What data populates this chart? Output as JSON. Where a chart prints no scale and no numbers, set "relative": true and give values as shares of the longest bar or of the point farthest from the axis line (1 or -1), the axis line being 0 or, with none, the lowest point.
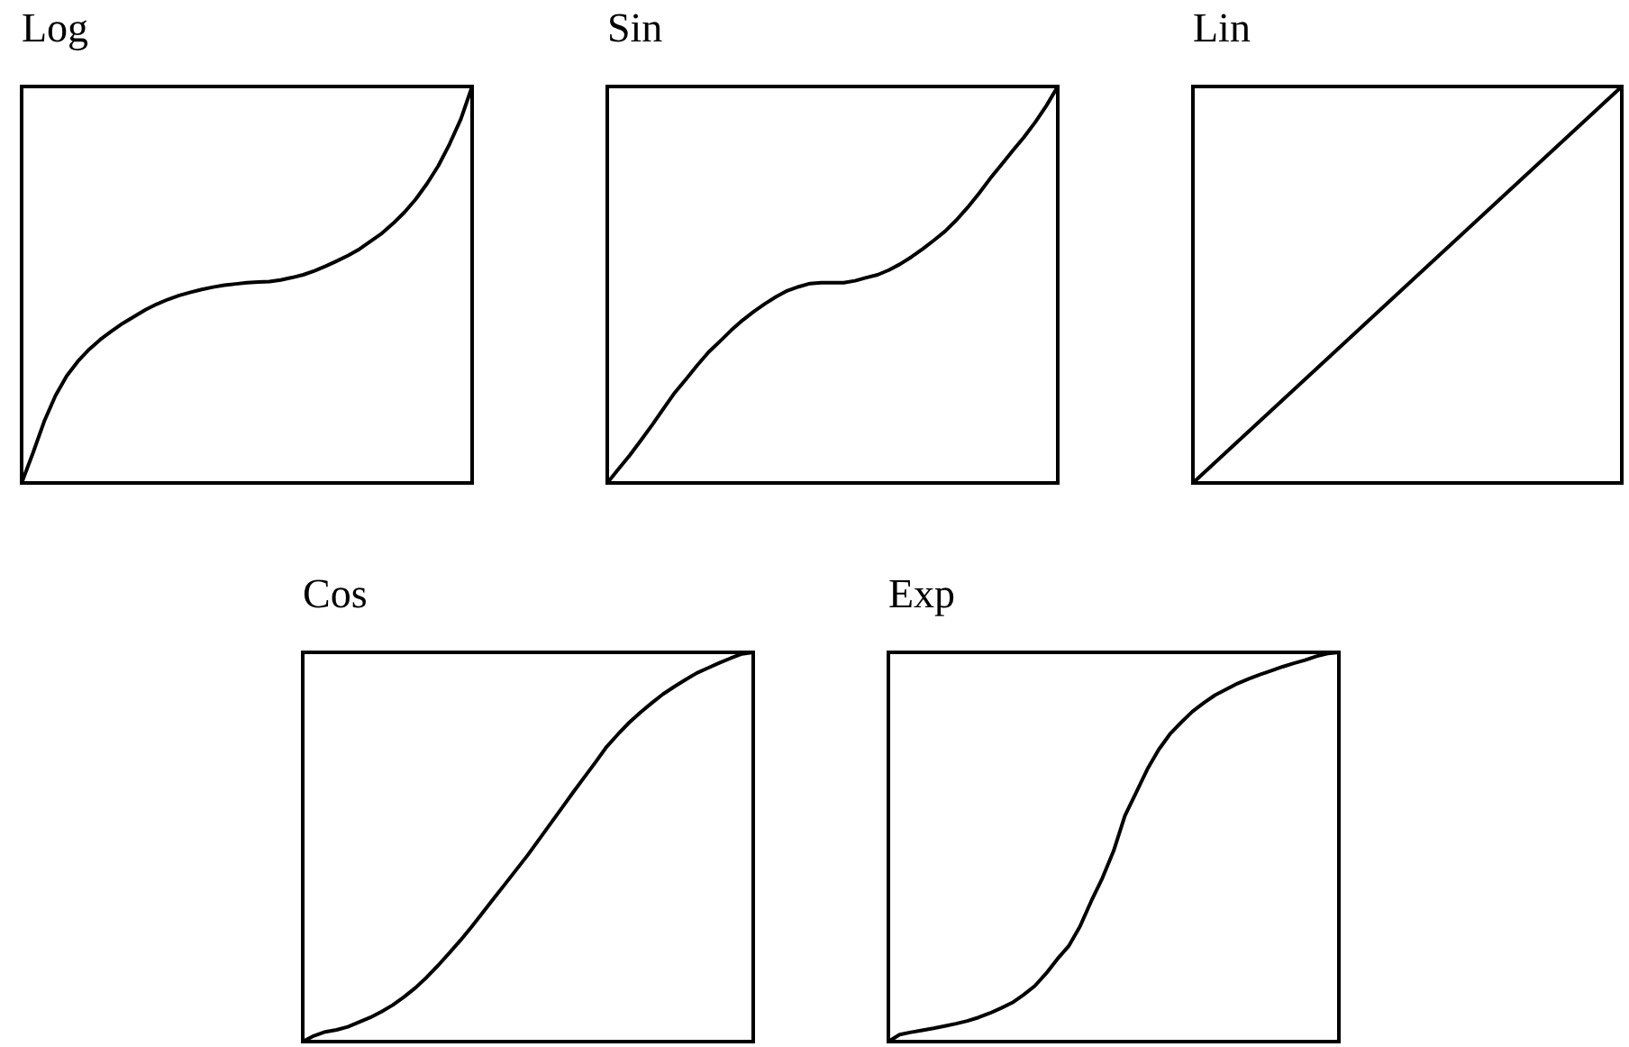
{
  "chart_data": [
    {
      "type": "line",
      "title": "Log",
      "relative": true,
      "tick_labels": false,
      "color": "#000000",
      "categories": [
        null,
        null,
        null,
        null,
        null,
        null,
        null,
        null,
        null,
        null,
        null,
        null,
        null,
        null,
        null,
        null,
        null,
        null,
        null,
        null,
        null,
        null,
        null,
        null,
        null,
        null,
        null,
        null,
        null,
        null,
        null,
        null,
        null,
        null,
        null,
        null,
        null,
        null,
        null,
        null,
        null
      ],
      "values": [
        0,
        0.075,
        0.155,
        0.22,
        0.27,
        0.307,
        0.337,
        0.362,
        0.383,
        0.403,
        0.42,
        0.437,
        0.451,
        0.463,
        0.473,
        0.481,
        0.488,
        0.494,
        0.499,
        0.502,
        0.505,
        0.507,
        0.508,
        0.512,
        0.518,
        0.525,
        0.535,
        0.547,
        0.56,
        0.574,
        0.59,
        0.61,
        0.63,
        0.655,
        0.683,
        0.716,
        0.755,
        0.8,
        0.855,
        0.918,
        1
      ]
    },
    {
      "type": "line",
      "title": "Sin",
      "relative": true,
      "tick_labels": false,
      "color": "#000000",
      "categories": [
        null,
        null,
        null,
        null,
        null,
        null,
        null,
        null,
        null,
        null,
        null,
        null,
        null,
        null,
        null,
        null,
        null,
        null,
        null,
        null,
        null,
        null,
        null,
        null,
        null,
        null,
        null,
        null,
        null,
        null,
        null,
        null,
        null,
        null,
        null,
        null,
        null,
        null,
        null,
        null,
        null
      ],
      "values": [
        0,
        0.035,
        0.07,
        0.108,
        0.147,
        0.188,
        0.228,
        0.262,
        0.297,
        0.33,
        0.357,
        0.385,
        0.41,
        0.432,
        0.452,
        0.47,
        0.485,
        0.495,
        0.503,
        0.505,
        0.505,
        0.505,
        0.51,
        0.518,
        0.525,
        0.537,
        0.552,
        0.57,
        0.59,
        0.612,
        0.635,
        0.663,
        0.695,
        0.73,
        0.768,
        0.803,
        0.838,
        0.872,
        0.91,
        0.952,
        1
      ]
    },
    {
      "type": "line",
      "title": "Lin",
      "relative": true,
      "tick_labels": false,
      "color": "#000000",
      "categories": [
        null,
        null,
        null,
        null,
        null,
        null,
        null,
        null,
        null,
        null,
        null,
        null,
        null,
        null,
        null,
        null,
        null,
        null,
        null,
        null,
        null,
        null,
        null,
        null,
        null,
        null,
        null,
        null,
        null,
        null,
        null,
        null,
        null,
        null,
        null,
        null,
        null,
        null,
        null,
        null,
        null
      ],
      "values": [
        0,
        0.025,
        0.05,
        0.075,
        0.1,
        0.125,
        0.15,
        0.175,
        0.2,
        0.225,
        0.25,
        0.275,
        0.3,
        0.325,
        0.35,
        0.375,
        0.4,
        0.425,
        0.45,
        0.475,
        0.5,
        0.525,
        0.55,
        0.575,
        0.6,
        0.625,
        0.65,
        0.675,
        0.7,
        0.725,
        0.75,
        0.775,
        0.8,
        0.825,
        0.85,
        0.875,
        0.9,
        0.925,
        0.95,
        0.975,
        1
      ]
    },
    {
      "type": "line",
      "title": "Cos",
      "relative": true,
      "tick_labels": false,
      "color": "#000000",
      "categories": [
        null,
        null,
        null,
        null,
        null,
        null,
        null,
        null,
        null,
        null,
        null,
        null,
        null,
        null,
        null,
        null,
        null,
        null,
        null,
        null,
        null,
        null,
        null,
        null,
        null,
        null,
        null,
        null,
        null,
        null,
        null,
        null,
        null,
        null,
        null,
        null,
        null,
        null,
        null,
        null,
        null
      ],
      "values": [
        0,
        0.015,
        0.025,
        0.03,
        0.038,
        0.05,
        0.062,
        0.077,
        0.094,
        0.115,
        0.138,
        0.165,
        0.195,
        0.227,
        0.26,
        0.295,
        0.332,
        0.369,
        0.406,
        0.443,
        0.48,
        0.52,
        0.56,
        0.6,
        0.64,
        0.679,
        0.718,
        0.758,
        0.79,
        0.82,
        0.846,
        0.87,
        0.893,
        0.912,
        0.93,
        0.947,
        0.96,
        0.973,
        0.985,
        0.996,
        1
      ]
    },
    {
      "type": "line",
      "title": "Exp",
      "relative": true,
      "tick_labels": false,
      "color": "#000000",
      "categories": [
        null,
        null,
        null,
        null,
        null,
        null,
        null,
        null,
        null,
        null,
        null,
        null,
        null,
        null,
        null,
        null,
        null,
        null,
        null,
        null,
        null,
        null,
        null,
        null,
        null,
        null,
        null,
        null,
        null,
        null,
        null,
        null,
        null,
        null,
        null,
        null,
        null,
        null,
        null,
        null,
        null
      ],
      "values": [
        0,
        0.018,
        0.024,
        0.029,
        0.034,
        0.04,
        0.046,
        0.053,
        0.062,
        0.073,
        0.086,
        0.1,
        0.12,
        0.143,
        0.175,
        0.212,
        0.245,
        0.295,
        0.36,
        0.42,
        0.49,
        0.58,
        0.64,
        0.7,
        0.75,
        0.79,
        0.82,
        0.848,
        0.87,
        0.89,
        0.905,
        0.92,
        0.932,
        0.943,
        0.953,
        0.963,
        0.972,
        0.98,
        0.99,
        0.997,
        1
      ]
    }
  ]
}
